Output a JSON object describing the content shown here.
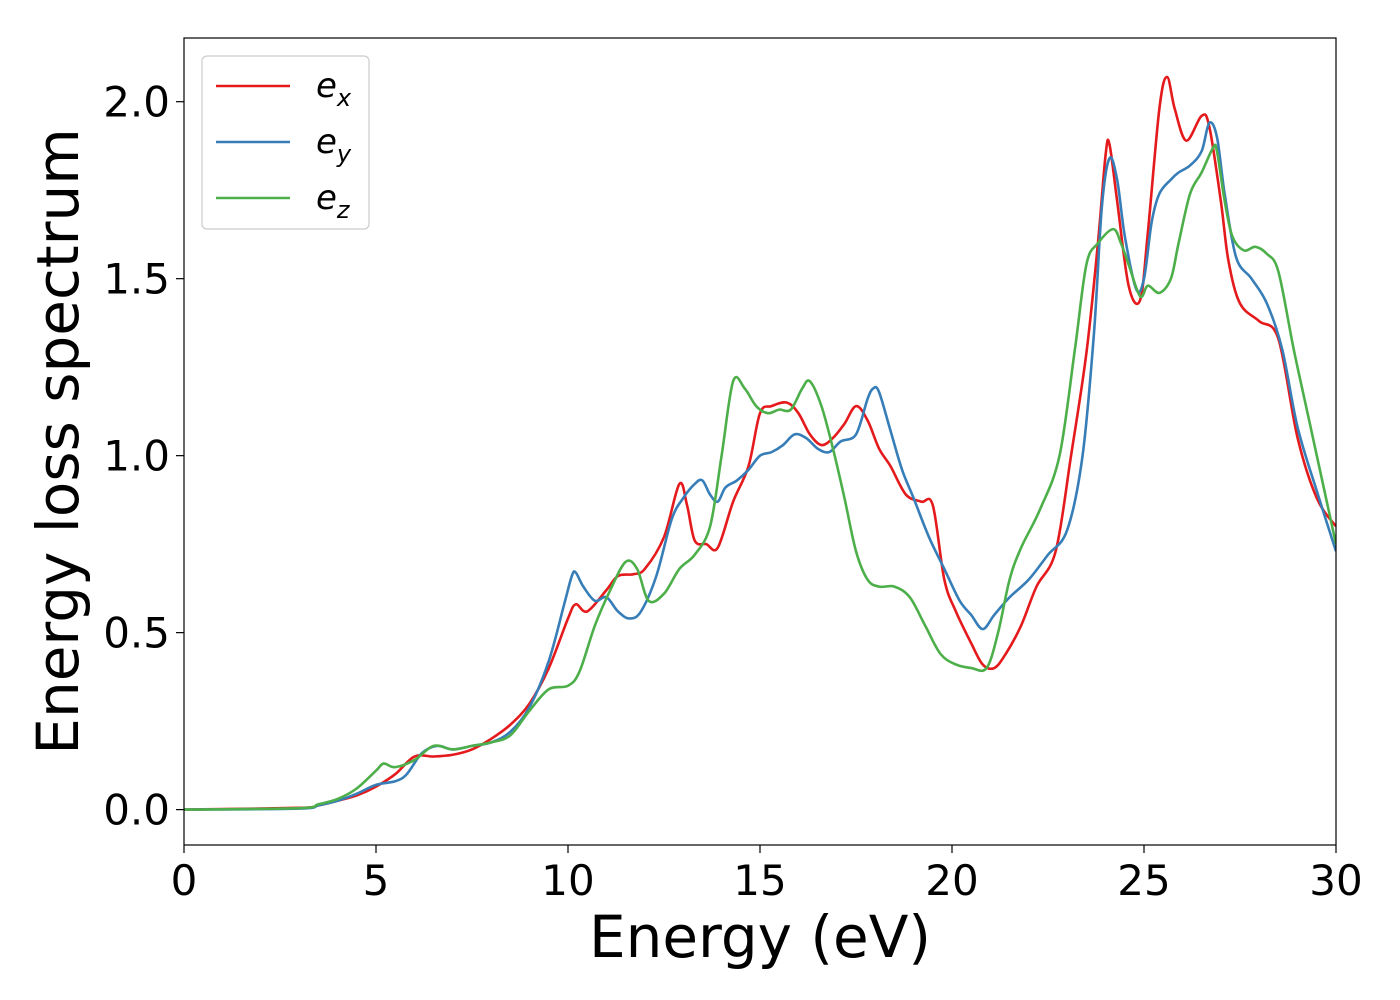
{
  "chart_data": {
    "type": "line",
    "xlabel": "Energy (eV)",
    "ylabel": "Energy loss spectrum",
    "xlim": [
      0,
      30
    ],
    "ylim": [
      -0.1,
      2.18
    ],
    "xticks": [
      0,
      5,
      10,
      15,
      20,
      25,
      30
    ],
    "yticks": [
      0.0,
      0.5,
      1.0,
      1.5,
      2.0
    ],
    "grid": false,
    "legend_position": "top-left",
    "series": [
      {
        "name": "e",
        "subscript": "x",
        "color": "#e41a1c",
        "x": [
          0,
          3,
          3.5,
          4,
          4.5,
          5,
          5.5,
          6,
          6.5,
          7,
          7.5,
          8,
          8.5,
          9,
          9.5,
          10,
          10.2,
          10.5,
          11,
          11.3,
          11.7,
          12,
          12.5,
          12.9,
          13.1,
          13.3,
          13.6,
          13.9,
          14.3,
          14.7,
          15,
          15.3,
          15.7,
          16,
          16.3,
          16.6,
          16.9,
          17.2,
          17.5,
          17.8,
          18.1,
          18.4,
          18.8,
          19.2,
          19.5,
          19.8,
          20.1,
          20.5,
          20.8,
          21.1,
          21.4,
          21.8,
          22.2,
          22.7,
          23.1,
          23.5,
          23.8,
          24.0,
          24.1,
          24.3,
          24.6,
          24.9,
          25.1,
          25.4,
          25.6,
          25.8,
          26.1,
          26.5,
          26.7,
          27.0,
          27.2,
          27.5,
          28.0,
          28.5,
          29.0,
          29.5,
          30
        ],
        "y": [
          0,
          0.005,
          0.012,
          0.025,
          0.04,
          0.065,
          0.1,
          0.15,
          0.15,
          0.155,
          0.17,
          0.2,
          0.24,
          0.3,
          0.4,
          0.54,
          0.58,
          0.56,
          0.62,
          0.66,
          0.665,
          0.68,
          0.77,
          0.92,
          0.86,
          0.76,
          0.75,
          0.74,
          0.87,
          0.97,
          1.12,
          1.14,
          1.15,
          1.12,
          1.06,
          1.03,
          1.05,
          1.09,
          1.14,
          1.1,
          1.02,
          0.97,
          0.89,
          0.87,
          0.86,
          0.65,
          0.56,
          0.47,
          0.41,
          0.4,
          0.44,
          0.52,
          0.63,
          0.73,
          1.0,
          1.29,
          1.6,
          1.85,
          1.88,
          1.72,
          1.48,
          1.44,
          1.63,
          1.98,
          2.07,
          1.98,
          1.89,
          1.96,
          1.93,
          1.72,
          1.55,
          1.43,
          1.38,
          1.33,
          1.05,
          0.88,
          0.8
        ]
      },
      {
        "name": "e",
        "subscript": "y",
        "color": "#377eb8",
        "x": [
          0,
          3,
          3.5,
          4,
          4.5,
          5,
          5.5,
          5.8,
          6.2,
          6.6,
          7,
          7.5,
          8,
          8.5,
          9,
          9.5,
          9.9,
          10.1,
          10.2,
          10.4,
          10.7,
          11,
          11.3,
          11.6,
          11.9,
          12.3,
          12.7,
          13.0,
          13.3,
          13.5,
          13.7,
          13.9,
          14.1,
          14.4,
          14.7,
          15.0,
          15.3,
          15.6,
          15.9,
          16.2,
          16.5,
          16.8,
          17.1,
          17.5,
          17.8,
          17.95,
          18.1,
          18.4,
          18.7,
          19.0,
          19.4,
          19.8,
          20.2,
          20.5,
          20.8,
          21.1,
          21.5,
          22.0,
          22.5,
          23.0,
          23.4,
          23.7,
          23.9,
          24.1,
          24.3,
          24.5,
          24.8,
          25.0,
          25.2,
          25.4,
          25.7,
          25.9,
          26.2,
          26.5,
          26.7,
          26.9,
          27.1,
          27.4,
          27.8,
          28.2,
          28.6,
          29.0,
          29.5,
          30
        ],
        "y": [
          0,
          0.003,
          0.012,
          0.025,
          0.045,
          0.07,
          0.08,
          0.1,
          0.16,
          0.18,
          0.17,
          0.18,
          0.19,
          0.22,
          0.29,
          0.42,
          0.58,
          0.66,
          0.67,
          0.63,
          0.59,
          0.6,
          0.56,
          0.54,
          0.56,
          0.66,
          0.82,
          0.88,
          0.92,
          0.93,
          0.89,
          0.87,
          0.91,
          0.93,
          0.96,
          1.0,
          1.01,
          1.03,
          1.06,
          1.05,
          1.02,
          1.01,
          1.04,
          1.06,
          1.16,
          1.19,
          1.18,
          1.07,
          0.96,
          0.88,
          0.77,
          0.68,
          0.59,
          0.55,
          0.51,
          0.55,
          0.6,
          0.65,
          0.72,
          0.79,
          1.0,
          1.35,
          1.7,
          1.84,
          1.78,
          1.62,
          1.47,
          1.5,
          1.66,
          1.74,
          1.78,
          1.8,
          1.82,
          1.86,
          1.94,
          1.9,
          1.74,
          1.56,
          1.5,
          1.43,
          1.3,
          1.08,
          0.9,
          0.73
        ]
      },
      {
        "name": "e",
        "subscript": "z",
        "color": "#4daf4a",
        "x": [
          0,
          3,
          3.5,
          4,
          4.5,
          5,
          5.2,
          5.5,
          6.0,
          6.5,
          7,
          7.5,
          8,
          8.5,
          9,
          9.5,
          10,
          10.3,
          10.7,
          11.1,
          11.5,
          11.8,
          12.1,
          12.5,
          12.9,
          13.3,
          13.7,
          14.0,
          14.3,
          14.6,
          14.9,
          15.2,
          15.5,
          15.8,
          16.1,
          16.3,
          16.6,
          16.9,
          17.2,
          17.5,
          17.8,
          18.1,
          18.5,
          18.9,
          19.3,
          19.7,
          20.1,
          20.5,
          20.9,
          21.2,
          21.5,
          21.8,
          22.3,
          22.8,
          23.2,
          23.5,
          23.8,
          24.2,
          24.4,
          24.6,
          24.9,
          25.1,
          25.4,
          25.7,
          25.9,
          26.2,
          26.5,
          26.8,
          26.9,
          27.1,
          27.3,
          27.6,
          27.9,
          28.2,
          28.5,
          28.9,
          29.3,
          30
        ],
        "y": [
          0,
          0.004,
          0.015,
          0.03,
          0.06,
          0.11,
          0.13,
          0.12,
          0.14,
          0.18,
          0.17,
          0.18,
          0.19,
          0.21,
          0.28,
          0.34,
          0.35,
          0.39,
          0.52,
          0.62,
          0.7,
          0.68,
          0.59,
          0.61,
          0.68,
          0.72,
          0.8,
          1.0,
          1.21,
          1.19,
          1.14,
          1.12,
          1.13,
          1.13,
          1.19,
          1.21,
          1.14,
          1.02,
          0.88,
          0.73,
          0.65,
          0.63,
          0.63,
          0.6,
          0.52,
          0.44,
          0.41,
          0.4,
          0.4,
          0.5,
          0.65,
          0.74,
          0.85,
          1.0,
          1.3,
          1.54,
          1.6,
          1.64,
          1.6,
          1.54,
          1.45,
          1.48,
          1.46,
          1.5,
          1.6,
          1.74,
          1.8,
          1.87,
          1.86,
          1.72,
          1.62,
          1.58,
          1.59,
          1.57,
          1.52,
          1.3,
          1.1,
          0.75
        ]
      }
    ]
  }
}
